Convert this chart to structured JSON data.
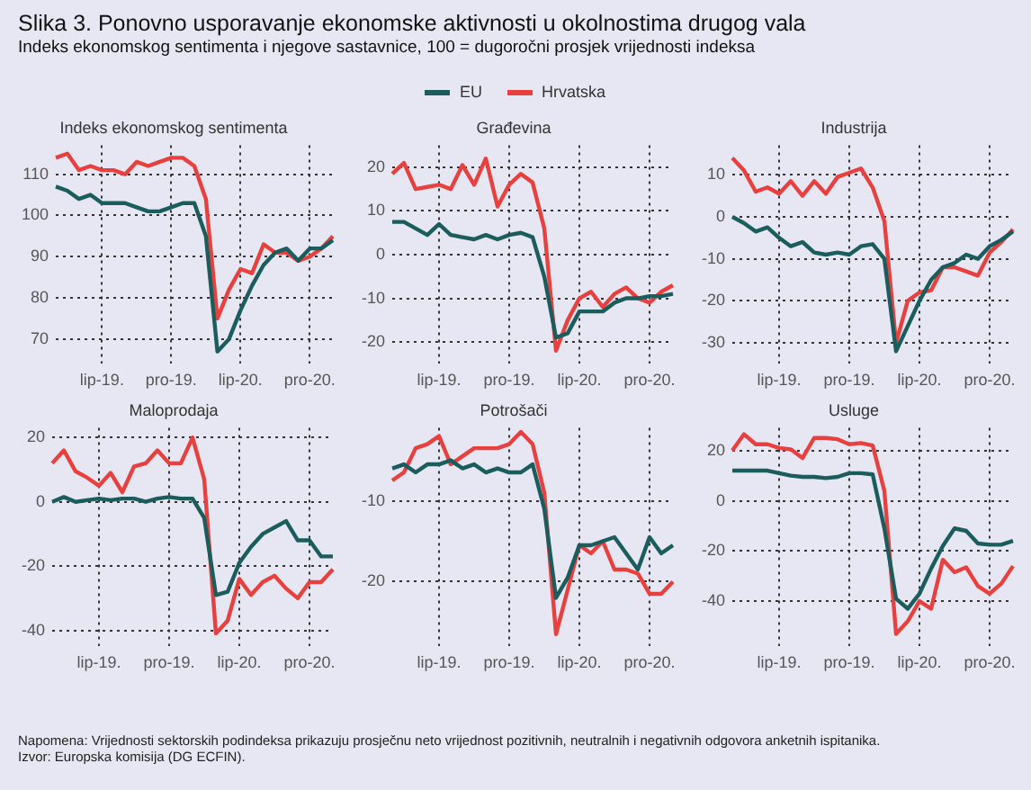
{
  "chart_data": [
    {
      "type": "other",
      "title": "Slika 3. Ponovno usporavanje ekonomske aktivnosti u okolnostima drugog vala",
      "subtitle": "Indeks ekonomskog sentimenta i njegove sastavnice, 100 = dugoročni prosjek vrijednosti indeksa",
      "annotations": [
        "Napomena: Vrijednosti sektorskih podindeksa prikazuju prosječnu neto vrijednost pozitivnih, neutralnih i negativnih odgovora anketnih ispitanika.",
        "Izvor: Europska komisija (DG ECFIN)."
      ]
    },
    {
      "type": "line",
      "title": "Indeks ekonomskog sentimenta",
      "legend": "top",
      "grid": true,
      "categories": [
        null,
        null,
        null,
        null,
        "lip-19.",
        null,
        null,
        null,
        null,
        null,
        "pro-19.",
        null,
        null,
        null,
        null,
        null,
        "lip-20.",
        null,
        null,
        null,
        null,
        null,
        "pro-20.",
        null,
        null
      ],
      "ylim": [
        64,
        117
      ],
      "yticks": [
        70,
        80,
        90,
        100,
        110
      ],
      "series": [
        {
          "name": "EU",
          "color": "#1b5c5c",
          "values": [
            107,
            106,
            104,
            105,
            103,
            103,
            103,
            102,
            101,
            101,
            102,
            103,
            103,
            95,
            67,
            70,
            77,
            83,
            88,
            91,
            92,
            89,
            92,
            92,
            94
          ]
        },
        {
          "name": "Hrvatska",
          "color": "#e8403e",
          "values": [
            114,
            115,
            111,
            112,
            111,
            111,
            110,
            113,
            112,
            113,
            114,
            114,
            112,
            104,
            75,
            82,
            87,
            86,
            93,
            91,
            91,
            89,
            90,
            92,
            95
          ]
        }
      ]
    },
    {
      "type": "line",
      "title": "Građevina",
      "grid": true,
      "categories": [
        null,
        null,
        null,
        null,
        "lip-19.",
        null,
        null,
        null,
        null,
        null,
        "pro-19.",
        null,
        null,
        null,
        null,
        null,
        "lip-20.",
        null,
        null,
        null,
        null,
        null,
        "pro-20.",
        null,
        null
      ],
      "ylim": [
        -25,
        25
      ],
      "yticks": [
        -20,
        -10,
        0,
        10,
        20
      ],
      "series": [
        {
          "color": "#1b5c5c",
          "values": [
            7.5,
            7.5,
            6,
            4.5,
            7,
            4.5,
            4,
            3.5,
            4.5,
            3.5,
            4.5,
            5,
            4,
            -5,
            -19,
            -18,
            -13,
            -13,
            -13,
            -11,
            -10,
            -10,
            -9.5,
            -9.5,
            -9
          ]
        },
        {
          "color": "#e8403e",
          "values": [
            18.5,
            21,
            15,
            15.5,
            16,
            15,
            20.5,
            16,
            22,
            11,
            16,
            18.5,
            16.5,
            6,
            -22,
            -15,
            -10,
            -8.5,
            -12,
            -9,
            -7.5,
            -10,
            -11,
            -8.5,
            -7
          ]
        }
      ]
    },
    {
      "type": "line",
      "title": "Industrija",
      "grid": true,
      "categories": [
        null,
        null,
        null,
        null,
        "lip-19.",
        null,
        null,
        null,
        null,
        null,
        "pro-19.",
        null,
        null,
        null,
        null,
        null,
        "lip-20.",
        null,
        null,
        null,
        null,
        null,
        "pro-20.",
        null,
        null
      ],
      "ylim": [
        -35,
        17
      ],
      "yticks": [
        -30,
        -20,
        -10,
        0,
        10
      ],
      "series": [
        {
          "color": "#1b5c5c",
          "values": [
            0,
            -1.5,
            -3.5,
            -2.5,
            -5,
            -7,
            -6,
            -8.5,
            -9,
            -8.5,
            -9,
            -7,
            -6.5,
            -10,
            -32,
            -26,
            -20,
            -15,
            -12,
            -11,
            -9,
            -10,
            -7,
            -5.5,
            -3.5
          ]
        },
        {
          "color": "#e8403e",
          "values": [
            14,
            11,
            6,
            7,
            5.5,
            8.5,
            5,
            8.5,
            5.5,
            9.5,
            10.5,
            11.5,
            7,
            -1,
            -30,
            -20,
            -18,
            -17.5,
            -12,
            -12,
            -13,
            -14,
            -8.5,
            -6,
            -3
          ]
        }
      ]
    },
    {
      "type": "line",
      "title": "Maloprodaja",
      "grid": true,
      "categories": [
        null,
        null,
        null,
        null,
        "lip-19.",
        null,
        null,
        null,
        null,
        null,
        "pro-19.",
        null,
        null,
        null,
        null,
        null,
        "lip-20.",
        null,
        null,
        null,
        null,
        null,
        "pro-20.",
        null,
        null
      ],
      "ylim": [
        -45,
        23
      ],
      "yticks": [
        -40,
        -20,
        0,
        20
      ],
      "series": [
        {
          "color": "#1b5c5c",
          "values": [
            0,
            1.5,
            0,
            0.5,
            1,
            0.5,
            1,
            1,
            0,
            1,
            1.5,
            1,
            1,
            -5,
            -29,
            -28,
            -19,
            -14,
            -10,
            -8,
            -6,
            -12,
            -12,
            -17,
            -17
          ]
        },
        {
          "color": "#e8403e",
          "values": [
            12,
            16,
            9.5,
            7.5,
            5,
            9,
            3,
            11,
            12,
            16,
            12,
            12,
            20,
            7,
            -41,
            -37,
            -24,
            -29,
            -25,
            -23,
            -27,
            -30,
            -25,
            -25,
            -21
          ]
        }
      ]
    },
    {
      "type": "line",
      "title": "Potrošači",
      "grid": true,
      "categories": [
        null,
        null,
        null,
        null,
        "lip-19.",
        null,
        null,
        null,
        null,
        null,
        "pro-19.",
        null,
        null,
        null,
        null,
        null,
        "lip-20.",
        null,
        null,
        null,
        null,
        null,
        "pro-20.",
        null,
        null
      ],
      "ylim": [
        -28,
        -1
      ],
      "yticks": [
        -20,
        -10
      ],
      "series": [
        {
          "color": "#1b5c5c",
          "values": [
            -6,
            -5.5,
            -6.5,
            -5.5,
            -5.5,
            -5,
            -6,
            -5.5,
            -6.5,
            -6,
            -6.5,
            -6.5,
            -5.5,
            -11,
            -22,
            -19.5,
            -15.5,
            -15.5,
            -15,
            -14.5,
            -16.5,
            -18.5,
            -14.5,
            -16.5,
            -15.5
          ]
        },
        {
          "color": "#e8403e",
          "values": [
            -7.5,
            -6.5,
            -3.5,
            -3,
            -2,
            -5.5,
            -4.5,
            -3.5,
            -3.5,
            -3.5,
            -3,
            -1.5,
            -3,
            -9,
            -26.5,
            -21,
            -15.5,
            -16.5,
            -15,
            -18.5,
            -18.5,
            -19,
            -21.5,
            -21.5,
            -20
          ]
        }
      ]
    },
    {
      "type": "line",
      "title": "Usluge",
      "grid": true,
      "categories": [
        null,
        null,
        null,
        null,
        "lip-19.",
        null,
        null,
        null,
        null,
        null,
        "pro-19.",
        null,
        null,
        null,
        null,
        null,
        "lip-20.",
        null,
        null,
        null,
        null,
        null,
        "pro-20.",
        null,
        null
      ],
      "ylim": [
        -58,
        29
      ],
      "yticks": [
        -40,
        -20,
        0,
        20
      ],
      "series": [
        {
          "color": "#1b5c5c",
          "values": [
            12,
            12,
            12,
            12,
            11,
            10,
            9.5,
            9.5,
            9,
            9.5,
            11,
            11,
            10.5,
            -11,
            -39,
            -43,
            -37,
            -27,
            -18,
            -11,
            -12,
            -17,
            -17.5,
            -17.5,
            -16
          ]
        },
        {
          "color": "#e8403e",
          "values": [
            20,
            26.5,
            22.5,
            22.5,
            21,
            20.5,
            17,
            25,
            25,
            24.5,
            22.5,
            23,
            22,
            4,
            -53,
            -48,
            -40,
            -43,
            -23.5,
            -28.5,
            -26.5,
            -34,
            -37,
            -33,
            -26
          ]
        }
      ]
    }
  ]
}
